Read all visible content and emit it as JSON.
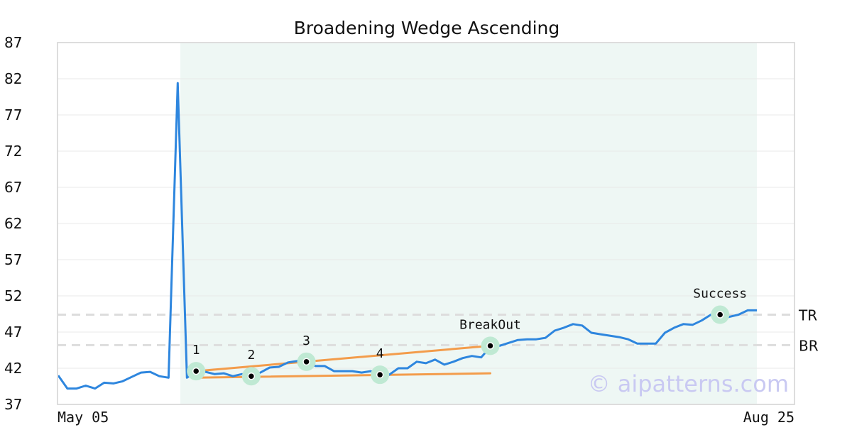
{
  "chart_data": {
    "type": "line",
    "title": "Broadening Wedge Ascending",
    "xlabel": "",
    "ylabel": "",
    "ylim": [
      37,
      87
    ],
    "yticks": [
      "87",
      "82",
      "77",
      "72",
      "67",
      "62",
      "57",
      "52",
      "47",
      "42",
      "37"
    ],
    "xtick_labels": [
      "May 05",
      "Aug 25"
    ],
    "grid": true,
    "pattern_region": {
      "start_index": 17,
      "end_index": 99
    },
    "series": [
      {
        "color": "#2e86de",
        "values": [
          41.0,
          39.2,
          39.2,
          39.6,
          39.2,
          40.0,
          39.9,
          40.2,
          40.8,
          41.4,
          41.5,
          40.9,
          40.7,
          81.4,
          40.7,
          41.6,
          41.5,
          41.2,
          41.3,
          40.9,
          41.2,
          40.9,
          41.4,
          42.1,
          42.2,
          42.8,
          43.0,
          42.9,
          42.3,
          42.3,
          41.6,
          41.6,
          41.6,
          41.4,
          41.6,
          41.1,
          41.1,
          42.0,
          42.0,
          42.9,
          42.7,
          43.2,
          42.5,
          42.9,
          43.4,
          43.7,
          43.5,
          44.9,
          45.1,
          45.5,
          45.9,
          46.0,
          46.0,
          46.2,
          47.2,
          47.6,
          48.1,
          47.9,
          46.9,
          46.7,
          46.5,
          46.3,
          46.0,
          45.4,
          45.4,
          45.4,
          46.9,
          47.6,
          48.1,
          48.0,
          48.6,
          49.4,
          48.9,
          49.1,
          49.4,
          50.0,
          50.0
        ]
      }
    ],
    "trend_lines": [
      {
        "color": "#f39c4b",
        "from": {
          "index": 15,
          "value": 41.6
        },
        "to": {
          "index": 47,
          "value": 45.1
        }
      },
      {
        "color": "#f39c4b",
        "from": {
          "index": 15,
          "value": 40.7
        },
        "to": {
          "index": 47,
          "value": 41.3
        }
      }
    ],
    "levels": [
      {
        "label": "TR",
        "value": 49.4,
        "color": "#dddddd"
      },
      {
        "label": "BR",
        "value": 45.2,
        "color": "#dddddd"
      }
    ],
    "points": [
      {
        "label": "1",
        "index": 15,
        "value": 41.6
      },
      {
        "label": "2",
        "index": 21,
        "value": 40.9
      },
      {
        "label": "3",
        "index": 27,
        "value": 42.9
      },
      {
        "label": "4",
        "index": 35,
        "value": 41.1
      },
      {
        "label": "BreakOut",
        "index": 47,
        "value": 45.1
      },
      {
        "label": "Success",
        "index": 72,
        "value": 49.4
      }
    ],
    "watermark": "© aipatterns.com"
  }
}
